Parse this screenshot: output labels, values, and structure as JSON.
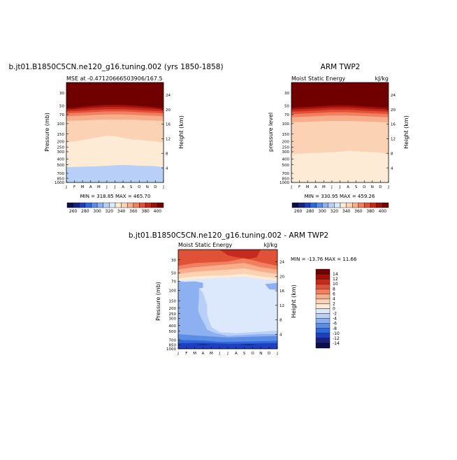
{
  "chart_data": [
    {
      "type": "heatmap",
      "title": "b.jt01.B1850C5CN.ne120_g16.tuning.002 (yrs 1850-1858)",
      "subtitle_left": "MSE at -0.47120666503906/167.5",
      "subtitle_right": "",
      "ylabel": "Pressure (mb)",
      "ylabel_right": "Height (km)",
      "x_ticks": [
        "J",
        "F",
        "M",
        "A",
        "M",
        "J",
        "J",
        "A",
        "S",
        "O",
        "N",
        "D",
        "J"
      ],
      "y_ticks": [
        "30",
        "50",
        "70",
        "100",
        "150",
        "200",
        "250",
        "300",
        "400",
        "500",
        "700",
        "850",
        "1000"
      ],
      "y2_ticks": [
        "24",
        "20",
        "16",
        "12",
        "8",
        "4"
      ],
      "stats": "MIN = 318.85   MAX = 465.70",
      "color_levels": [
        260,
        270,
        280,
        290,
        300,
        310,
        320,
        330,
        340,
        350,
        360,
        370,
        380,
        390,
        400
      ],
      "colorbar_labels": [
        "260",
        "280",
        "300",
        "320",
        "340",
        "360",
        "380",
        "400"
      ],
      "ylim": [
        1000,
        20
      ],
      "xlim": [
        0,
        12
      ],
      "band_boundaries_mb": {
        "levels": [
          400,
          390,
          380,
          370,
          360,
          350,
          340,
          330
        ],
        "pressure_mb": [
          [
            55,
            54,
            52,
            50,
            49,
            48,
            48,
            48,
            49,
            50,
            51,
            53,
            55
          ],
          [
            58,
            57,
            55,
            54,
            53,
            52,
            52,
            52,
            53,
            54,
            55,
            56,
            58
          ],
          [
            62,
            61,
            60,
            59,
            58,
            57,
            57,
            57,
            58,
            59,
            60,
            61,
            62
          ],
          [
            67,
            66,
            65,
            64,
            63,
            62,
            62,
            62,
            63,
            64,
            65,
            66,
            67
          ],
          [
            75,
            74,
            73,
            72,
            71,
            70,
            70,
            70,
            71,
            72,
            73,
            74,
            75
          ],
          [
            90,
            89,
            88,
            87,
            86,
            85,
            85,
            85,
            86,
            87,
            88,
            89,
            90
          ],
          [
            210,
            200,
            190,
            180,
            170,
            160,
            165,
            175,
            185,
            190,
            195,
            200,
            210
          ],
          [
            550,
            545,
            540,
            535,
            530,
            520,
            510,
            505,
            510,
            520,
            525,
            530,
            550
          ]
        ]
      }
    },
    {
      "type": "heatmap",
      "title": "ARM TWP2",
      "subtitle_left": "Moist Static Energy",
      "subtitle_right": "kJ/kg",
      "ylabel": "pressure level",
      "ylabel_right": "Height (km)",
      "x_ticks": [
        "J",
        "F",
        "M",
        "A",
        "M",
        "J",
        "J",
        "A",
        "S",
        "O",
        "N",
        "D",
        "J"
      ],
      "y_ticks": [
        "30",
        "50",
        "70",
        "100",
        "150",
        "200",
        "250",
        "300",
        "400",
        "500",
        "700",
        "850",
        "1000"
      ],
      "y2_ticks": [
        "24",
        "20",
        "16",
        "12",
        "8",
        "4"
      ],
      "stats": "MIN = 330.95   MAX = 459.26",
      "color_levels": [
        260,
        270,
        280,
        290,
        300,
        310,
        320,
        330,
        340,
        350,
        360,
        370,
        380,
        390,
        400
      ],
      "colorbar_labels": [
        "260",
        "280",
        "300",
        "320",
        "340",
        "360",
        "380",
        "400"
      ],
      "ylim": [
        1000,
        20
      ],
      "xlim": [
        0,
        12
      ],
      "band_boundaries_mb": {
        "levels": [
          400,
          390,
          380,
          370,
          360,
          350,
          340
        ],
        "pressure_mb": [
          [
            54,
            53,
            52,
            51,
            50,
            49,
            49,
            49,
            50,
            51,
            52,
            53,
            54
          ],
          [
            58,
            57,
            56,
            55,
            54,
            53,
            53,
            53,
            54,
            55,
            56,
            57,
            58
          ],
          [
            63,
            62,
            61,
            60,
            59,
            58,
            58,
            58,
            59,
            60,
            61,
            62,
            63
          ],
          [
            69,
            68,
            67,
            66,
            65,
            64,
            64,
            64,
            65,
            66,
            67,
            68,
            69
          ],
          [
            78,
            77,
            76,
            75,
            74,
            73,
            73,
            73,
            74,
            75,
            76,
            77,
            78
          ],
          [
            95,
            94,
            93,
            92,
            91,
            90,
            90,
            90,
            91,
            92,
            93,
            94,
            95
          ],
          [
            330,
            325,
            320,
            315,
            310,
            305,
            300,
            290,
            295,
            300,
            305,
            310,
            330
          ]
        ]
      }
    },
    {
      "type": "heatmap",
      "title": "b.jt01.B1850C5CN.ne120_g16.tuning.002 - ARM TWP2",
      "subtitle_left": "Moist Static Energy",
      "subtitle_right": "kJ/kg",
      "ylabel": "Pressure (mb)",
      "ylabel_right": "Height (km)",
      "x_ticks": [
        "J",
        "F",
        "M",
        "A",
        "M",
        "J",
        "J",
        "A",
        "S",
        "O",
        "N",
        "D",
        "J"
      ],
      "y_ticks": [
        "30",
        "50",
        "70",
        "100",
        "150",
        "200",
        "250",
        "300",
        "400",
        "500",
        "700",
        "850",
        "1000"
      ],
      "y2_ticks": [
        "24",
        "20",
        "16",
        "12",
        "8",
        "4"
      ],
      "stats": "MIN = -13.76   MAX =  11.66",
      "color_levels": [
        -14,
        -12,
        -10,
        -8,
        -6,
        -4,
        -2,
        0,
        2,
        4,
        6,
        8,
        10,
        12,
        14
      ],
      "colorbar_labels": [
        "14",
        "12",
        "10",
        "8",
        "6",
        "4",
        "2",
        "0",
        "-2",
        "-4",
        "-6",
        "-8",
        "-10",
        "-12",
        "-14"
      ],
      "ylim": [
        1000,
        20
      ],
      "xlim": [
        0,
        12
      ]
    }
  ],
  "colors": {
    "ncl_blue_red": [
      "#0d0d4a",
      "#1a237e",
      "#1e3fbf",
      "#2f6adb",
      "#5b8de6",
      "#8db1f0",
      "#b8cff7",
      "#dce8fb",
      "#fdebd6",
      "#fbd2b4",
      "#f7ae8a",
      "#f08060",
      "#e05238",
      "#c52a1c",
      "#9e1009",
      "#700000"
    ]
  }
}
